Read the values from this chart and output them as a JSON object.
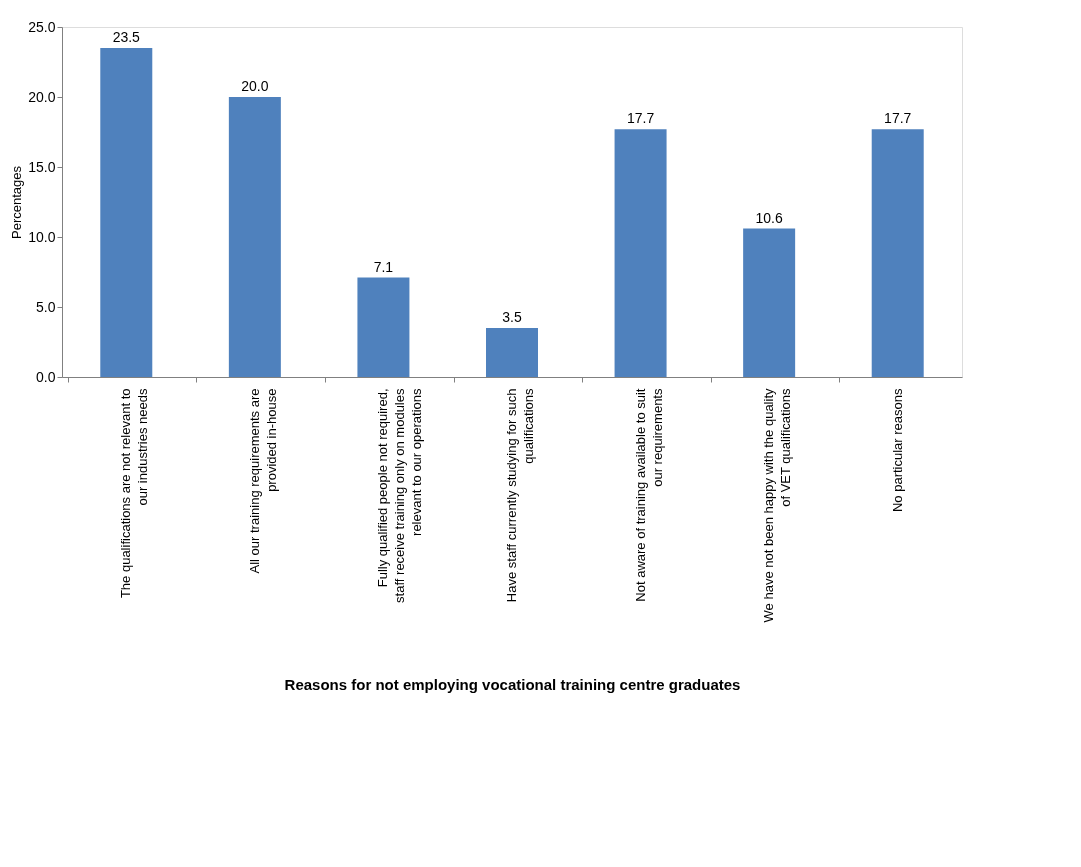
{
  "chart_data": {
    "type": "bar",
    "xlabel": "Reasons for not employing  vocational training centre graduates",
    "ylabel": "Percentages",
    "categories": [
      "The qualifications are not relevant to our industries needs",
      "All our training requirements are provided in-house",
      "Fully qualified people  not required, staff receive training only on modules relevant to our operations",
      "Have staff currently studying for such qualifications",
      "Not aware of training available to suit our requirements",
      "We have not been happy with the quality of VET qualifications",
      "No particular  reasons"
    ],
    "values": [
      23.5,
      20.0,
      7.1,
      3.5,
      17.7,
      10.6,
      17.7
    ],
    "color": "#4f81bd",
    "ylim": [
      0,
      25
    ],
    "yticks": [
      {
        "value": 0,
        "label": "0.0"
      },
      {
        "value": 5,
        "label": "5.0"
      },
      {
        "value": 10,
        "label": "10.0"
      },
      {
        "value": 15,
        "label": "15.0"
      },
      {
        "value": 20,
        "label": "20.0"
      },
      {
        "value": 25,
        "label": "25.0"
      }
    ],
    "value_labels": [
      "23.5",
      "20.0",
      "7.1",
      "3.5",
      "17.7",
      "10.6",
      "17.7"
    ],
    "grid": false
  }
}
